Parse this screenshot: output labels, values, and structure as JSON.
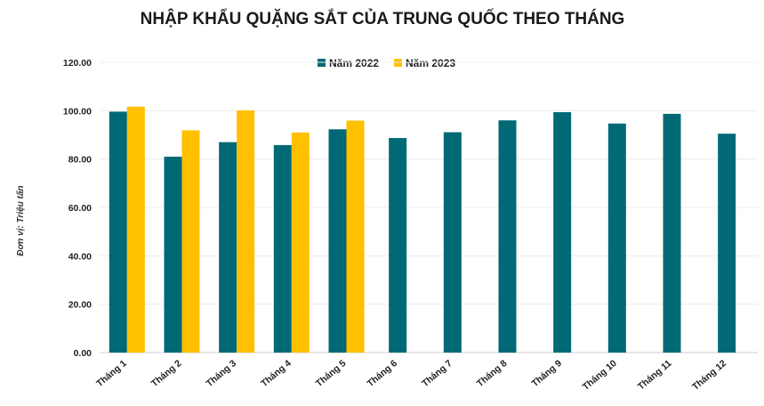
{
  "chart_data": {
    "type": "bar",
    "title": "NHẬP KHẨU QUẶNG SẮT CỦA TRUNG QUỐC THEO THÁNG",
    "ylabel": "Đơn vị: Triệu tấn",
    "xlabel": "",
    "ylim": [
      0,
      120
    ],
    "yticks": [
      "0.00",
      "20.00",
      "40.00",
      "60.00",
      "80.00",
      "100.00",
      "120.00"
    ],
    "categories": [
      "Tháng 1",
      "Tháng 2",
      "Tháng 3",
      "Tháng 4",
      "Tháng 5",
      "Tháng 6",
      "Tháng 7",
      "Tháng 8",
      "Tháng 9",
      "Tháng 10",
      "Tháng 11",
      "Tháng 12"
    ],
    "series": [
      {
        "name": "Năm 2022",
        "color": "#006975",
        "values": [
          99.6,
          81.0,
          87.0,
          85.8,
          92.3,
          88.7,
          91.1,
          96.0,
          99.4,
          94.7,
          98.7,
          90.5
        ]
      },
      {
        "name": "Năm 2023",
        "color": "#FFC000",
        "values": [
          101.7,
          91.9,
          100.1,
          91.0,
          95.9,
          null,
          null,
          null,
          null,
          null,
          null,
          null
        ]
      }
    ],
    "grid": true,
    "legend_position": "top-center"
  }
}
